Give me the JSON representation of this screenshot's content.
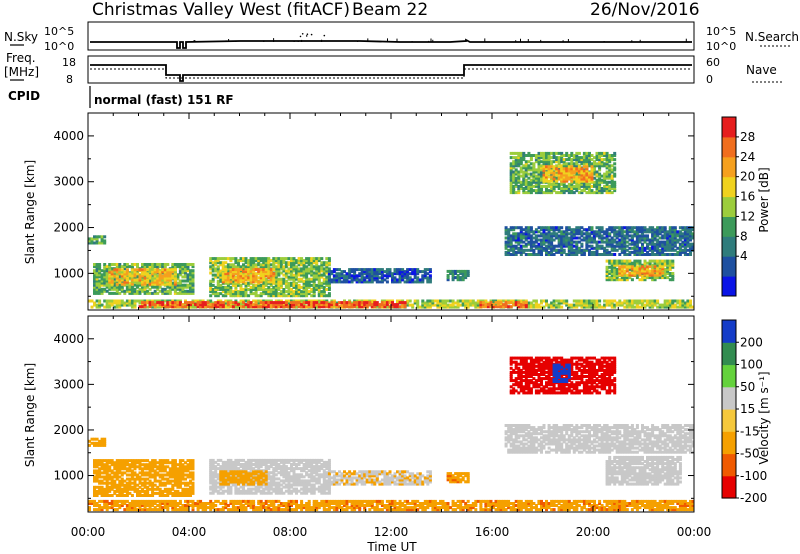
{
  "header": {
    "title": "Christmas Valley West (fitACF)",
    "beam": "Beam 22",
    "date": "26/Nov/2016"
  },
  "top_panels": {
    "nsky_label": "N.Sky",
    "nsearch_label": "N.Search",
    "nsky_ticks": [
      "10^5",
      "10^0"
    ],
    "nsearch_ticks": [
      "10^5",
      "10^0"
    ],
    "freq_label_1": "Freq.",
    "freq_label_2": "[MHz]",
    "freq_ticks": [
      "18",
      "8"
    ],
    "nave_label": "Nave",
    "nave_ticks": [
      "60",
      "0"
    ],
    "cpid_label": "CPID",
    "cpid_text": "normal (fast) 151 RF"
  },
  "xaxis": {
    "label": "Time UT",
    "ticks": [
      "00:00",
      "04:00",
      "08:00",
      "12:00",
      "16:00",
      "20:00",
      "00:00"
    ]
  },
  "colors": {
    "power_scale": [
      "#0a14e6",
      "#1e50a0",
      "#2f7c7c",
      "#3c9a5a",
      "#9ccd3c",
      "#f0d21e",
      "#f5a01e",
      "#f06e1e",
      "#e61e1e"
    ],
    "velocity_scale": [
      "#e60000",
      "#f05a00",
      "#f5a000",
      "#f5c83c",
      "#c8c8c8",
      "#64d23c",
      "#328c50",
      "#143cc8"
    ]
  },
  "chart_data": [
    {
      "type": "heatmap",
      "ylabel": "Slant Range [km]",
      "xlabel": "",
      "y_ticks": [
        1000,
        2000,
        3000,
        4000
      ],
      "ylim": [
        200,
        4500
      ],
      "xlim": [
        0,
        24
      ],
      "colorbar_label": "Power [dB]",
      "colorbar_ticks": [
        "28",
        "24",
        "20",
        "16",
        "12",
        "8",
        "4"
      ],
      "clim": [
        0,
        30
      ],
      "regions": [
        {
          "t0": 0.0,
          "t1": 0.7,
          "r0": 1650,
          "r1": 1800,
          "value": 11
        },
        {
          "t0": 0.2,
          "t1": 4.2,
          "r0": 550,
          "r1": 1200,
          "value": 13
        },
        {
          "t0": 0.8,
          "t1": 3.5,
          "r0": 750,
          "r1": 1100,
          "value": 20
        },
        {
          "t0": 4.8,
          "t1": 9.5,
          "r0": 500,
          "r1": 1350,
          "value": 14
        },
        {
          "t0": 5.3,
          "t1": 7.3,
          "r0": 800,
          "r1": 1100,
          "value": 21
        },
        {
          "t0": 9.5,
          "t1": 13.5,
          "r0": 800,
          "r1": 1100,
          "value": 6
        },
        {
          "t0": 14.2,
          "t1": 15.0,
          "r0": 850,
          "r1": 1050,
          "value": 9
        },
        {
          "t0": 16.7,
          "t1": 20.9,
          "r0": 2750,
          "r1": 3650,
          "value": 13
        },
        {
          "t0": 18.0,
          "t1": 20.0,
          "r0": 3000,
          "r1": 3350,
          "value": 21
        },
        {
          "t0": 16.5,
          "t1": 24.0,
          "r0": 1400,
          "r1": 2000,
          "value": 7
        },
        {
          "t0": 20.5,
          "t1": 23.2,
          "r0": 850,
          "r1": 1300,
          "value": 14
        },
        {
          "t0": 21.0,
          "t1": 22.8,
          "r0": 950,
          "r1": 1150,
          "value": 21
        },
        {
          "t0": 0.0,
          "t1": 24.0,
          "r0": 250,
          "r1": 420,
          "value": 16
        },
        {
          "t0": 2.0,
          "t1": 12.5,
          "r0": 260,
          "r1": 360,
          "value": 26
        },
        {
          "t0": 15.5,
          "t1": 17.5,
          "r0": 260,
          "r1": 360,
          "value": 25
        }
      ]
    },
    {
      "type": "heatmap",
      "ylabel": "Slant Range [km]",
      "xlabel": "Time UT",
      "y_ticks": [
        1000,
        2000,
        3000,
        4000
      ],
      "ylim": [
        200,
        4500
      ],
      "xlim": [
        0,
        24
      ],
      "colorbar_label": "Velocity [m s⁻¹]",
      "colorbar_ticks": [
        "200",
        "100",
        "50",
        "15",
        "-15",
        "-50",
        "-100",
        "-200"
      ],
      "clim": [
        -250,
        250
      ],
      "regions": [
        {
          "t0": 0.0,
          "t1": 0.7,
          "r0": 1650,
          "r1": 1800,
          "value": -30
        },
        {
          "t0": 0.2,
          "t1": 4.2,
          "r0": 550,
          "r1": 1350,
          "value": -35
        },
        {
          "t0": 4.8,
          "t1": 9.5,
          "r0": 600,
          "r1": 1350,
          "value": 0
        },
        {
          "t0": 5.2,
          "t1": 7.0,
          "r0": 800,
          "r1": 1100,
          "value": -30
        },
        {
          "t0": 9.5,
          "t1": 13.5,
          "r0": 800,
          "r1": 1100,
          "value": -10
        },
        {
          "t0": 14.2,
          "t1": 15.0,
          "r0": 850,
          "r1": 1050,
          "value": -40
        },
        {
          "t0": 16.7,
          "t1": 20.9,
          "r0": 2800,
          "r1": 3600,
          "value": -220
        },
        {
          "t0": 18.4,
          "t1": 19.1,
          "r0": 3050,
          "r1": 3450,
          "value": 150
        },
        {
          "t0": 16.5,
          "t1": 24.0,
          "r0": 1500,
          "r1": 2100,
          "value": 0
        },
        {
          "t0": 20.5,
          "t1": 23.5,
          "r0": 800,
          "r1": 1400,
          "value": 0
        },
        {
          "t0": 0.0,
          "t1": 24.0,
          "r0": 240,
          "r1": 450,
          "value": -40
        }
      ]
    }
  ]
}
